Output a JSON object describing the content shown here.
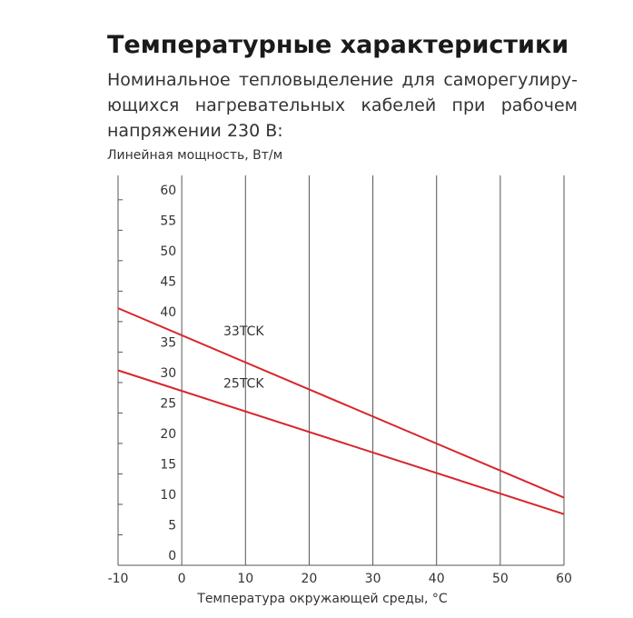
{
  "chart_data": {
    "type": "line",
    "title": "Температурные характеристики",
    "subtitle": "Номинальное тепловыделение для саморегулиру-ющихся нагревательных кабелей при рабочем напряжении 230 В:",
    "y_label": "Линейная мощность, Вт/м",
    "x_label": "Температура окружающей среды, °C",
    "series": [
      {
        "name": "33TCK",
        "color": "#d7262c",
        "x": [
          -10,
          60
        ],
        "values": [
          42.2,
          11.1
        ]
      },
      {
        "name": "25TCK",
        "color": "#d7262c",
        "x": [
          -10,
          60
        ],
        "values": [
          32,
          8.4
        ]
      }
    ],
    "xlim": [
      -10,
      60
    ],
    "xticks": [
      -10,
      0,
      10,
      20,
      30,
      40,
      50,
      60
    ],
    "ylim": [
      0,
      64
    ],
    "yticks": [
      0,
      5,
      10,
      15,
      20,
      25,
      30,
      35,
      40,
      45,
      50,
      55,
      60
    ]
  }
}
